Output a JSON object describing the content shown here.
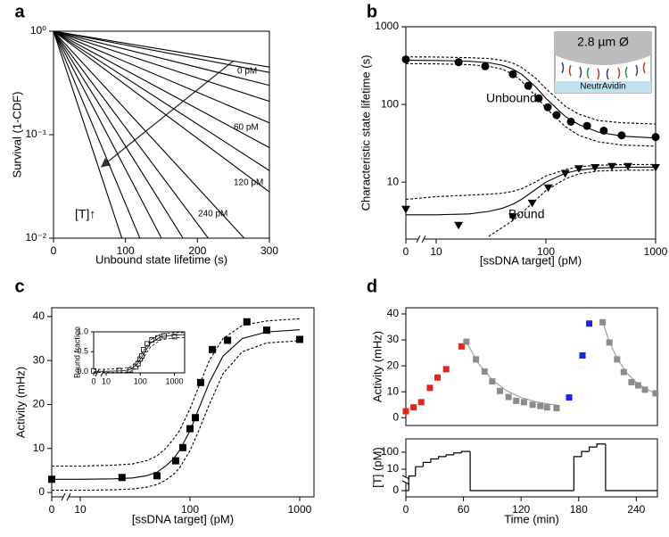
{
  "chart_data": [
    {
      "type": "line",
      "panel_label": "a",
      "xlabel": "Unbound state lifetime (s)",
      "ylabel": "Survival (1-CDF)",
      "xlim": [
        0,
        300
      ],
      "ylim": [
        0.01,
        1
      ],
      "yscale": "log",
      "xticks": [
        0,
        100,
        200,
        300
      ],
      "yticks": [
        {
          "value": 0.01,
          "label": "10⁻²"
        },
        {
          "value": 0.1,
          "label": "10⁻¹"
        },
        {
          "value": 1,
          "label": "10⁰"
        }
      ],
      "annotations": [
        "0 pM",
        "60 pM",
        "120 pM",
        "240 pM",
        "[T]↑"
      ],
      "series": [
        {
          "color": "#000000",
          "line": "solid",
          "x": [
            0,
            300
          ],
          "values": [
            1,
            0.45
          ]
        },
        {
          "color": "#000000",
          "line": "solid",
          "x": [
            0,
            300
          ],
          "values": [
            1,
            0.4
          ]
        },
        {
          "color": "#000000",
          "line": "solid",
          "x": [
            0,
            300
          ],
          "values": [
            1,
            0.3
          ]
        },
        {
          "color": "#000000",
          "line": "solid",
          "x": [
            0,
            300
          ],
          "values": [
            1,
            0.21
          ]
        },
        {
          "color": "#000000",
          "line": "solid",
          "x": [
            0,
            300
          ],
          "values": [
            1,
            0.13
          ]
        },
        {
          "color": "#000000",
          "line": "solid",
          "x": [
            0,
            300
          ],
          "values": [
            1,
            0.075
          ]
        },
        {
          "color": "#000000",
          "line": "solid",
          "x": [
            0,
            300
          ],
          "values": [
            1,
            0.045
          ]
        },
        {
          "color": "#000000",
          "line": "solid",
          "x": [
            0,
            300
          ],
          "values": [
            1,
            0.028
          ]
        },
        {
          "color": "#000000",
          "line": "solid",
          "x": [
            0,
            265
          ],
          "values": [
            1,
            0.01
          ]
        },
        {
          "color": "#000000",
          "line": "solid",
          "x": [
            0,
            215
          ],
          "values": [
            1,
            0.01
          ]
        },
        {
          "color": "#000000",
          "line": "solid",
          "x": [
            0,
            180
          ],
          "values": [
            1,
            0.01
          ]
        },
        {
          "color": "#000000",
          "line": "solid",
          "x": [
            0,
            150
          ],
          "values": [
            1,
            0.01
          ]
        },
        {
          "color": "#000000",
          "line": "solid",
          "x": [
            0,
            120
          ],
          "values": [
            1,
            0.01
          ]
        },
        {
          "color": "#000000",
          "line": "solid",
          "x": [
            0,
            95
          ],
          "values": [
            1,
            0.01
          ]
        }
      ]
    },
    {
      "type": "scatter",
      "panel_label": "b",
      "xlabel": "[ssDNA target] (pM)",
      "ylabel": "Characteristic state lifetime (s)",
      "xlim": [
        0,
        1000
      ],
      "ylim": [
        1.85,
        1000
      ],
      "xscale": "log-broken",
      "yscale": "log",
      "xticks": [
        0,
        10,
        100,
        1000
      ],
      "yticks": [
        10,
        100,
        1000
      ],
      "annotations": [
        "Unbound",
        "Bound",
        "2.8 µm Ø",
        "NeutrAvidin"
      ],
      "series": [
        {
          "color": "#000000",
          "marker": "circle",
          "x": [
            0,
            16,
            28,
            50,
            69,
            86,
            104,
            125,
            169,
            237,
            337,
            490,
            1000
          ],
          "values": [
            380,
            350,
            310,
            245,
            174,
            120,
            92,
            73,
            60,
            53,
            46,
            40,
            38
          ]
        },
        {
          "color": "#000000",
          "marker": "triangle-down",
          "x": [
            0,
            16,
            50,
            75,
            105,
            150,
            200,
            280,
            400,
            560,
            1000
          ],
          "values": [
            4.5,
            2.8,
            3.6,
            5.4,
            8.5,
            13,
            15,
            15.5,
            16,
            16,
            15.5
          ]
        },
        {
          "color": "#000000",
          "line": "solid",
          "x": [
            0,
            10,
            20,
            30,
            40,
            50,
            60,
            80,
            100,
            150,
            200,
            300,
            500,
            1000
          ],
          "values": [
            370,
            368,
            360,
            345,
            320,
            285,
            245,
            170,
            120,
            70,
            55,
            44,
            39,
            37
          ]
        },
        {
          "color": "#000000",
          "line": "dashed",
          "x": [
            0,
            10,
            20,
            30,
            40,
            50,
            60,
            80,
            100,
            150,
            200,
            300,
            500,
            1000
          ],
          "values": [
            410,
            408,
            400,
            390,
            370,
            340,
            300,
            220,
            160,
            95,
            75,
            62,
            58,
            56
          ]
        },
        {
          "color": "#000000",
          "line": "dashed",
          "x": [
            0,
            10,
            20,
            30,
            40,
            50,
            60,
            80,
            100,
            150,
            200,
            300,
            500,
            1000
          ],
          "values": [
            335,
            333,
            325,
            310,
            285,
            245,
            200,
            130,
            90,
            52,
            40,
            33,
            30,
            29
          ]
        },
        {
          "color": "#000000",
          "line": "solid",
          "x": [
            0,
            10,
            20,
            30,
            40,
            50,
            60,
            80,
            100,
            150,
            200,
            300,
            500,
            1000
          ],
          "values": [
            3.8,
            3.8,
            3.9,
            4.2,
            4.6,
            5.2,
            6,
            8,
            10,
            13,
            14.3,
            15.2,
            15.5,
            15.6
          ]
        },
        {
          "color": "#000000",
          "line": "dashed",
          "x": [
            0,
            10,
            20,
            30,
            40,
            50,
            60,
            80,
            100,
            150,
            200,
            300,
            500,
            1000
          ],
          "values": [
            6,
            6.5,
            6.8,
            7,
            7.2,
            7.6,
            8.2,
            10,
            12,
            14.5,
            15.8,
            16.5,
            16.8,
            16.9
          ]
        },
        {
          "color": "#000000",
          "line": "dashed",
          "x": [
            0,
            10,
            20,
            30,
            40,
            50,
            60,
            80,
            100,
            150,
            200,
            300,
            500,
            1000
          ],
          "values": [
            null,
            null,
            null,
            2,
            2.6,
            3.2,
            4,
            5.8,
            7.8,
            11,
            12.8,
            13.9,
            14.2,
            14.3
          ]
        }
      ]
    },
    {
      "type": "scatter",
      "panel_label": "c",
      "xlabel": "[ssDNA target] (pM)",
      "ylabel": "Activity (mHz)",
      "xlim": [
        0,
        1350
      ],
      "ylim": [
        -1,
        42
      ],
      "xscale": "log-broken",
      "xticks": [
        0,
        10,
        100,
        1000
      ],
      "yticks": [
        0,
        10,
        20,
        30,
        40
      ],
      "series": [
        {
          "color": "#000000",
          "marker": "square",
          "x": [
            0,
            24,
            50,
            74,
            86,
            100,
            112,
            125,
            160,
            220,
            330,
            500,
            1000
          ],
          "values": [
            3,
            3.4,
            3.8,
            7.2,
            10.2,
            14.5,
            17,
            25,
            32.5,
            34.6,
            38.8,
            36.9,
            34.8
          ]
        },
        {
          "color": "#000000",
          "line": "solid",
          "x": [
            0,
            10,
            20,
            30,
            40,
            50,
            60,
            70,
            80,
            100,
            120,
            150,
            200,
            300,
            500,
            1000
          ],
          "values": [
            3,
            3,
            3.1,
            3.3,
            3.8,
            4.6,
            6,
            7.5,
            9.5,
            14,
            19,
            25,
            31,
            35,
            36.5,
            37
          ]
        },
        {
          "color": "#000000",
          "line": "dashed",
          "x": [
            0,
            10,
            20,
            30,
            40,
            50,
            60,
            70,
            80,
            100,
            120,
            150,
            200,
            300,
            500,
            1000
          ],
          "values": [
            6,
            6,
            6.2,
            6.5,
            7.2,
            8.3,
            10,
            12,
            14,
            19,
            24,
            30,
            35,
            38,
            39,
            39.5
          ]
        },
        {
          "color": "#000000",
          "line": "dashed",
          "x": [
            0,
            10,
            20,
            30,
            40,
            50,
            60,
            70,
            80,
            100,
            120,
            150,
            200,
            300,
            500,
            1000
          ],
          "values": [
            0.5,
            0.5,
            0.6,
            0.8,
            1.2,
            1.8,
            2.8,
            4,
            5.5,
            9.5,
            14,
            20,
            27,
            32,
            34,
            34.5
          ]
        }
      ]
    },
    {
      "type": "scatter",
      "ylabel": "Bound fraction",
      "xlim": [
        0,
        2000
      ],
      "ylim": [
        -0.03,
        1.0
      ],
      "xscale": "log-broken",
      "xticks": [
        0,
        10,
        100,
        1000
      ],
      "yticks": [
        {
          "value": 0,
          "label": "0.0"
        },
        {
          "value": 0.5,
          "label": "0.5"
        },
        {
          "value": 1,
          "label": "1.0"
        }
      ],
      "series": [
        {
          "color": "#000000",
          "marker": "open-square",
          "x": [
            0,
            24,
            50,
            74,
            86,
            100,
            112,
            125,
            160,
            220,
            330,
            500,
            1000
          ],
          "values": [
            0.02,
            0.03,
            0.04,
            0.12,
            0.2,
            0.32,
            0.4,
            0.55,
            0.7,
            0.8,
            0.85,
            0.9,
            0.88
          ]
        },
        {
          "color": "#000000",
          "line": "solid",
          "x": [
            0,
            10,
            30,
            50,
            80,
            120,
            200,
            400,
            1000,
            2000
          ],
          "values": [
            0.01,
            0.01,
            0.02,
            0.05,
            0.18,
            0.42,
            0.72,
            0.88,
            0.92,
            0.93
          ]
        },
        {
          "color": "#000000",
          "line": "dashed",
          "x": [
            0,
            10,
            30,
            50,
            80,
            120,
            200,
            400,
            1000,
            2000
          ],
          "values": [
            0.06,
            0.06,
            0.08,
            0.12,
            0.26,
            0.5,
            0.8,
            0.94,
            0.98,
            0.98
          ]
        },
        {
          "color": "#000000",
          "line": "dashed",
          "x": [
            0,
            10,
            30,
            50,
            80,
            120,
            200,
            400,
            1000,
            2000
          ],
          "values": [
            -0.02,
            -0.02,
            -0.02,
            0,
            0.1,
            0.33,
            0.62,
            0.8,
            0.85,
            0.86
          ]
        }
      ]
    },
    {
      "type": "scatter",
      "panel_label": "d",
      "ylabel": "Activity (mHz)",
      "xlim": [
        0,
        262
      ],
      "ylim": [
        -3,
        42.4
      ],
      "yticks": [
        0,
        10,
        20,
        30,
        40
      ],
      "series": [
        {
          "color": "#9a9a9a",
          "line": "solid",
          "x": [
            63,
            75,
            90,
            105,
            120,
            135,
            150,
            160
          ],
          "values": [
            29.3,
            21.2,
            14.6,
            10.4,
            7.8,
            6.2,
            5.2,
            4.7
          ]
        },
        {
          "color": "#9a9a9a",
          "line": "solid",
          "x": [
            205,
            212,
            220,
            230,
            240,
            250,
            260
          ],
          "values": [
            36.8,
            29.3,
            22.9,
            17.3,
            13.6,
            11.1,
            9.4
          ]
        },
        {
          "color": "#e8231b",
          "marker": "square",
          "x": [
            0,
            8,
            16,
            25,
            33,
            42,
            58
          ],
          "values": [
            2.5,
            4,
            6,
            11.5,
            15.5,
            18.7,
            27.5
          ]
        },
        {
          "color": "#8c8c8c",
          "marker": "square",
          "x": [
            63,
            73,
            82,
            90,
            98,
            107,
            115,
            123,
            132,
            140,
            147,
            157
          ],
          "values": [
            29.3,
            22.5,
            17.8,
            14,
            10.3,
            8,
            6.5,
            6,
            5,
            4.5,
            4,
            3.7
          ]
        },
        {
          "color": "#1526e6",
          "marker": "square",
          "x": [
            170,
            184,
            191
          ],
          "values": [
            7.8,
            24,
            36.3
          ]
        },
        {
          "color": "#8c8c8c",
          "marker": "square",
          "x": [
            205,
            212,
            220,
            227,
            235,
            242,
            249,
            260
          ],
          "values": [
            36.8,
            29,
            22.5,
            17.6,
            13.7,
            12.5,
            10.8,
            9.4
          ]
        }
      ]
    },
    {
      "type": "line",
      "xlabel": "Time (min)",
      "ylabel": "[T] (pM)",
      "xlim": [
        0,
        262
      ],
      "ylim": [
        0,
        600
      ],
      "yscale": "log-broken",
      "xticks": [
        0,
        60,
        120,
        180,
        240
      ],
      "yticks": [
        0,
        10,
        100
      ],
      "series": [
        {
          "color": "#000000",
          "line": "step",
          "x": [
            0,
            3,
            10,
            18,
            26,
            34,
            42,
            50,
            58,
            67,
            175,
            183,
            191,
            199,
            208
          ],
          "values": [
            0,
            4,
            14,
            25,
            40,
            55,
            70,
            90,
            110,
            0,
            55,
            110,
            200,
            300,
            0
          ]
        }
      ]
    }
  ]
}
